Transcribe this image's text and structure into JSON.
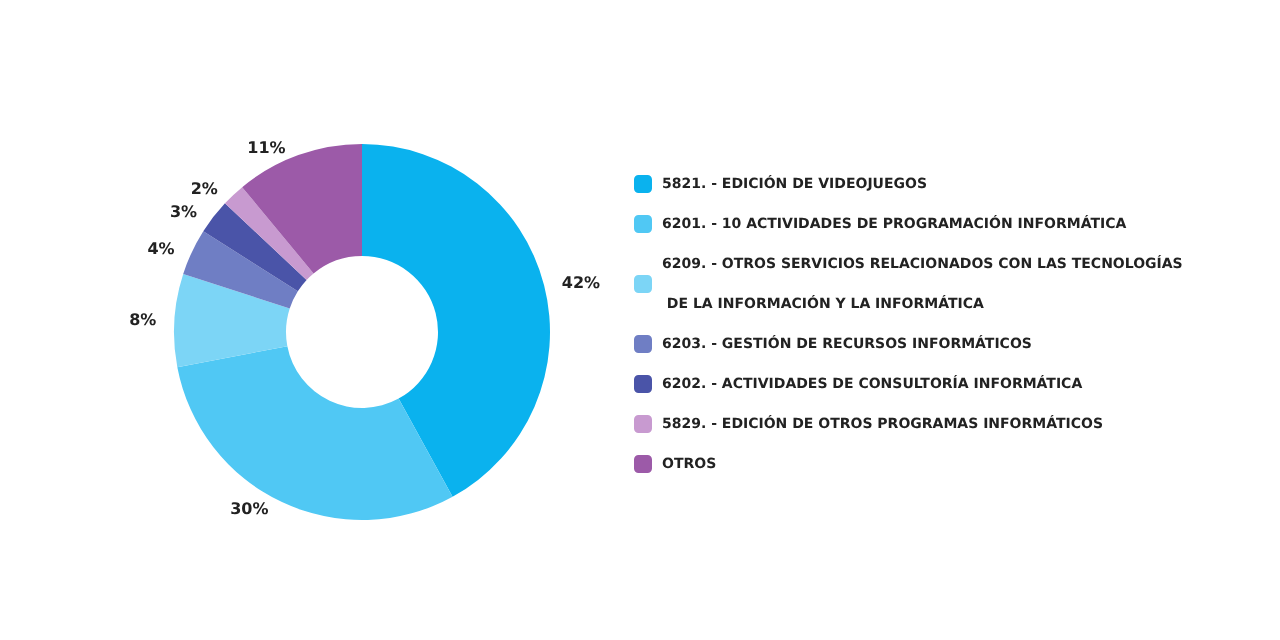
{
  "chart_data": {
    "type": "donut",
    "categories": [
      "5821. - EDICIÓN DE VIDEOJUEGOS",
      "6201. - 10 ACTIVIDADES DE PROGRAMACIÓN INFORMÁTICA",
      "6209. - OTROS SERVICIOS RELACIONADOS CON LAS TECNOLOGÍAS DE LA INFORMACIÓN Y LA INFORMÁTICA",
      "6203. - GESTIÓN DE RECURSOS INFORMÁTICOS",
      "6202. - ACTIVIDADES DE CONSULTORÍA INFORMÁTICA",
      "5829. - EDICIÓN DE OTROS PROGRAMAS INFORMÁTICOS",
      "OTROS"
    ],
    "values": [
      42,
      30,
      8,
      4,
      3,
      2,
      11
    ],
    "value_labels": [
      "42%",
      "30%",
      "8%",
      "4%",
      "3%",
      "2%",
      "11%"
    ],
    "colors": [
      "#0ab2ee",
      "#50c8f4",
      "#7cd5f6",
      "#6f7ec4",
      "#4a54a8",
      "#c89ad0",
      "#9c5aa8"
    ],
    "legend": "right"
  }
}
